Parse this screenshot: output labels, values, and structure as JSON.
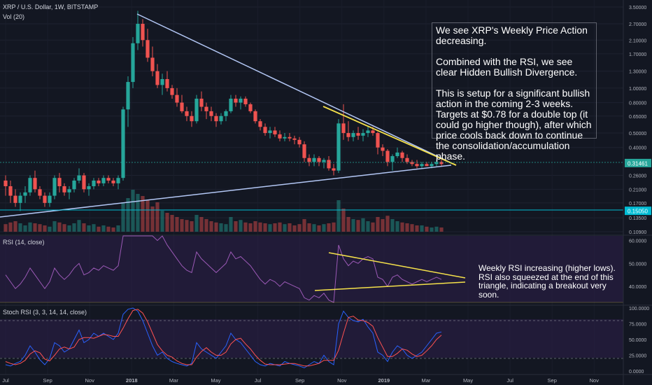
{
  "header": {
    "symbol": "XRP / U.S. Dollar, 1W, BITSTAMP",
    "volume": "Vol (20)",
    "rsi": "RSI (14, close)",
    "stoch": "Stoch RSI (3, 3, 14, 14, close)"
  },
  "annotations": {
    "main": "We see XRP's Weekly Price Action decreasing.\n\nCombined with the RSI, we see clear Hidden Bullish Divergence.\n\nThis is setup for a significant bullish action in the coming 2-3 weeks. Targets at $0.78 for a double top (it could go higher though), after which price cools back down to continue the consolidation/accumulation phase.",
    "rsi": "Weekly RSI increasing (higher lows). RSI also squeezed at the end of this triangle, indicating a breakout very soon."
  },
  "colors": {
    "background": "#131722",
    "up": "#26a69a",
    "down": "#ef5350",
    "trendline": "#b3c7f5",
    "yellow": "#f5e14a",
    "cyan": "#00bcd4",
    "rsi_fill": "#2d1f4a",
    "rsi_line": "#9b59b6",
    "stoch_k": "#2962ff",
    "stoch_d": "#ff5252"
  },
  "chart_data": {
    "type": "candlestick",
    "price_axis": {
      "scale": "log",
      "ticks": [
        "3.50000",
        "2.70000",
        "2.10000",
        "1.70000",
        "1.30000",
        "1.00000",
        "0.80000",
        "0.65000",
        "0.50000",
        "0.40000",
        "0.31461",
        "0.26000",
        "0.21000",
        "0.17000",
        "0.15050",
        "0.13500",
        "0.10900"
      ],
      "tick_values": [
        3.5,
        2.7,
        2.1,
        1.7,
        1.3,
        1.0,
        0.8,
        0.65,
        0.5,
        0.4,
        0.31461,
        0.26,
        0.21,
        0.17,
        0.1505,
        0.135,
        0.109
      ],
      "current_price": "0.31461",
      "marked_level": "0.15050"
    },
    "time_axis": [
      "Jul",
      "Sep",
      "Nov",
      "2018",
      "Mar",
      "May",
      "Jul",
      "Sep",
      "Nov",
      "2019",
      "Mar",
      "May",
      "Jul",
      "Sep",
      "Nov"
    ],
    "candles": [
      [
        0.24,
        0.26,
        0.19,
        0.22
      ],
      [
        0.22,
        0.24,
        0.17,
        0.19
      ],
      [
        0.19,
        0.21,
        0.16,
        0.17
      ],
      [
        0.17,
        0.2,
        0.15,
        0.19
      ],
      [
        0.19,
        0.22,
        0.17,
        0.2
      ],
      [
        0.2,
        0.26,
        0.19,
        0.25
      ],
      [
        0.25,
        0.28,
        0.2,
        0.21
      ],
      [
        0.21,
        0.22,
        0.18,
        0.19
      ],
      [
        0.19,
        0.2,
        0.16,
        0.17
      ],
      [
        0.17,
        0.2,
        0.16,
        0.19
      ],
      [
        0.19,
        0.26,
        0.18,
        0.25
      ],
      [
        0.25,
        0.27,
        0.2,
        0.22
      ],
      [
        0.22,
        0.23,
        0.19,
        0.2
      ],
      [
        0.2,
        0.22,
        0.18,
        0.21
      ],
      [
        0.21,
        0.25,
        0.2,
        0.24
      ],
      [
        0.24,
        0.29,
        0.23,
        0.26
      ],
      [
        0.26,
        0.27,
        0.2,
        0.21
      ],
      [
        0.21,
        0.23,
        0.19,
        0.22
      ],
      [
        0.22,
        0.25,
        0.21,
        0.24
      ],
      [
        0.24,
        0.25,
        0.22,
        0.23
      ],
      [
        0.23,
        0.26,
        0.22,
        0.25
      ],
      [
        0.25,
        0.26,
        0.23,
        0.24
      ],
      [
        0.24,
        0.25,
        0.22,
        0.23
      ],
      [
        0.23,
        0.26,
        0.21,
        0.25
      ],
      [
        0.25,
        0.75,
        0.24,
        0.72
      ],
      [
        0.72,
        1.2,
        0.55,
        1.1
      ],
      [
        1.1,
        2.2,
        1.0,
        2.0
      ],
      [
        2.0,
        3.3,
        1.8,
        2.7
      ],
      [
        2.7,
        2.9,
        1.9,
        2.1
      ],
      [
        2.1,
        2.5,
        1.5,
        1.6
      ],
      [
        1.6,
        1.9,
        1.2,
        1.3
      ],
      [
        1.3,
        1.45,
        1.0,
        1.05
      ],
      [
        1.05,
        1.25,
        0.9,
        1.15
      ],
      [
        1.15,
        1.3,
        0.95,
        1.0
      ],
      [
        1.0,
        1.05,
        0.85,
        0.9
      ],
      [
        0.9,
        1.0,
        0.75,
        0.8
      ],
      [
        0.8,
        0.9,
        0.68,
        0.7
      ],
      [
        0.7,
        0.75,
        0.6,
        0.65
      ],
      [
        0.65,
        0.7,
        0.55,
        0.6
      ],
      [
        0.6,
        0.9,
        0.58,
        0.85
      ],
      [
        0.85,
        0.95,
        0.7,
        0.75
      ],
      [
        0.75,
        0.8,
        0.62,
        0.7
      ],
      [
        0.7,
        0.75,
        0.6,
        0.65
      ],
      [
        0.65,
        0.68,
        0.55,
        0.6
      ],
      [
        0.6,
        0.68,
        0.57,
        0.65
      ],
      [
        0.65,
        0.72,
        0.6,
        0.7
      ],
      [
        0.7,
        0.9,
        0.68,
        0.85
      ],
      [
        0.85,
        0.9,
        0.75,
        0.8
      ],
      [
        0.8,
        0.88,
        0.72,
        0.85
      ],
      [
        0.85,
        0.88,
        0.75,
        0.78
      ],
      [
        0.78,
        0.8,
        0.68,
        0.7
      ],
      [
        0.7,
        0.72,
        0.58,
        0.6
      ],
      [
        0.6,
        0.62,
        0.52,
        0.55
      ],
      [
        0.55,
        0.58,
        0.48,
        0.5
      ],
      [
        0.5,
        0.55,
        0.46,
        0.52
      ],
      [
        0.52,
        0.55,
        0.47,
        0.49
      ],
      [
        0.49,
        0.52,
        0.44,
        0.46
      ],
      [
        0.46,
        0.5,
        0.44,
        0.47
      ],
      [
        0.47,
        0.5,
        0.44,
        0.46
      ],
      [
        0.46,
        0.48,
        0.42,
        0.45
      ],
      [
        0.45,
        0.47,
        0.4,
        0.42
      ],
      [
        0.42,
        0.44,
        0.32,
        0.34
      ],
      [
        0.34,
        0.36,
        0.3,
        0.32
      ],
      [
        0.32,
        0.36,
        0.3,
        0.34
      ],
      [
        0.34,
        0.35,
        0.3,
        0.32
      ],
      [
        0.32,
        0.34,
        0.29,
        0.33
      ],
      [
        0.33,
        0.35,
        0.28,
        0.29
      ],
      [
        0.29,
        0.31,
        0.26,
        0.28
      ],
      [
        0.28,
        0.62,
        0.27,
        0.58
      ],
      [
        0.58,
        0.78,
        0.45,
        0.5
      ],
      [
        0.5,
        0.6,
        0.44,
        0.47
      ],
      [
        0.47,
        0.52,
        0.44,
        0.5
      ],
      [
        0.5,
        0.55,
        0.45,
        0.48
      ],
      [
        0.48,
        0.53,
        0.44,
        0.5
      ],
      [
        0.5,
        0.56,
        0.47,
        0.52
      ],
      [
        0.52,
        0.55,
        0.48,
        0.5
      ],
      [
        0.5,
        0.51,
        0.36,
        0.4
      ],
      [
        0.4,
        0.42,
        0.35,
        0.38
      ],
      [
        0.38,
        0.39,
        0.3,
        0.32
      ],
      [
        0.32,
        0.36,
        0.28,
        0.35
      ],
      [
        0.35,
        0.4,
        0.34,
        0.37
      ],
      [
        0.37,
        0.38,
        0.32,
        0.34
      ],
      [
        0.34,
        0.36,
        0.31,
        0.32
      ],
      [
        0.32,
        0.33,
        0.3,
        0.31
      ],
      [
        0.31,
        0.33,
        0.29,
        0.3
      ],
      [
        0.3,
        0.32,
        0.29,
        0.31
      ],
      [
        0.31,
        0.32,
        0.3,
        0.3
      ],
      [
        0.3,
        0.32,
        0.29,
        0.31
      ],
      [
        0.31,
        0.33,
        0.3,
        0.32
      ],
      [
        0.32,
        0.33,
        0.3,
        0.31
      ]
    ],
    "volume": [
      0.18,
      0.22,
      0.25,
      0.2,
      0.15,
      0.22,
      0.2,
      0.18,
      0.15,
      0.12,
      0.25,
      0.22,
      0.18,
      0.15,
      0.2,
      0.28,
      0.2,
      0.15,
      0.18,
      0.12,
      0.15,
      0.12,
      0.1,
      0.15,
      0.7,
      0.8,
      1.0,
      0.9,
      0.85,
      0.75,
      0.6,
      0.7,
      0.5,
      0.45,
      0.4,
      0.35,
      0.3,
      0.28,
      0.25,
      0.4,
      0.35,
      0.3,
      0.25,
      0.22,
      0.2,
      0.18,
      0.35,
      0.25,
      0.28,
      0.22,
      0.2,
      0.25,
      0.22,
      0.2,
      0.18,
      0.2,
      0.22,
      0.18,
      0.2,
      0.15,
      0.18,
      0.3,
      0.2,
      0.18,
      0.15,
      0.18,
      0.2,
      0.22,
      0.75,
      0.55,
      0.35,
      0.3,
      0.28,
      0.32,
      0.25,
      0.22,
      0.35,
      0.3,
      0.38,
      0.3,
      0.25,
      0.22,
      0.2,
      0.18,
      0.15,
      0.15,
      0.12,
      0.1,
      0.12,
      0.1
    ],
    "rsi_axis": [
      "60.0000",
      "50.0000",
      "40.0000"
    ],
    "rsi": [
      45,
      42,
      39,
      41,
      44,
      48,
      45,
      42,
      39,
      42,
      48,
      45,
      43,
      45,
      48,
      50,
      45,
      46,
      48,
      47,
      49,
      48,
      47,
      49,
      72,
      78,
      85,
      88,
      80,
      73,
      66,
      60,
      62,
      58,
      55,
      52,
      49,
      47,
      46,
      55,
      52,
      50,
      48,
      46,
      48,
      50,
      55,
      52,
      53,
      51,
      49,
      46,
      43,
      41,
      43,
      42,
      40,
      42,
      41,
      40,
      39,
      35,
      34,
      36,
      35,
      37,
      34,
      33,
      58,
      52,
      49,
      51,
      50,
      52,
      53,
      52,
      44,
      43,
      40,
      44,
      45,
      43,
      42,
      41,
      42,
      43,
      42,
      43,
      44,
      43
    ],
    "stoch_axis": [
      "100.0000",
      "75.0000",
      "50.0000",
      "25.0000",
      "0.0000"
    ],
    "stoch_k": [
      10,
      8,
      12,
      15,
      25,
      40,
      30,
      18,
      10,
      20,
      45,
      40,
      30,
      35,
      50,
      65,
      45,
      50,
      60,
      55,
      60,
      55,
      50,
      60,
      90,
      98,
      100,
      95,
      80,
      60,
      40,
      25,
      30,
      20,
      15,
      12,
      10,
      8,
      12,
      45,
      35,
      30,
      25,
      20,
      30,
      40,
      60,
      50,
      45,
      35,
      25,
      15,
      10,
      8,
      12,
      10,
      8,
      15,
      12,
      10,
      8,
      5,
      10,
      15,
      12,
      25,
      15,
      10,
      75,
      95,
      85,
      80,
      78,
      82,
      70,
      60,
      30,
      25,
      15,
      30,
      40,
      35,
      25,
      20,
      25,
      30,
      40,
      50,
      60,
      62
    ],
    "stoch_d": [
      15,
      12,
      10,
      12,
      17,
      27,
      32,
      29,
      19,
      16,
      25,
      35,
      38,
      35,
      38,
      50,
      53,
      53,
      52,
      55,
      58,
      57,
      55,
      55,
      68,
      83,
      96,
      98,
      92,
      78,
      60,
      42,
      32,
      25,
      22,
      16,
      12,
      10,
      10,
      22,
      31,
      37,
      30,
      25,
      25,
      30,
      43,
      50,
      52,
      43,
      35,
      25,
      17,
      11,
      10,
      10,
      10,
      11,
      12,
      12,
      10,
      8,
      8,
      10,
      12,
      17,
      17,
      17,
      33,
      60,
      85,
      87,
      81,
      80,
      77,
      71,
      53,
      38,
      23,
      23,
      28,
      35,
      33,
      27,
      23,
      25,
      32,
      40,
      50,
      57
    ]
  }
}
